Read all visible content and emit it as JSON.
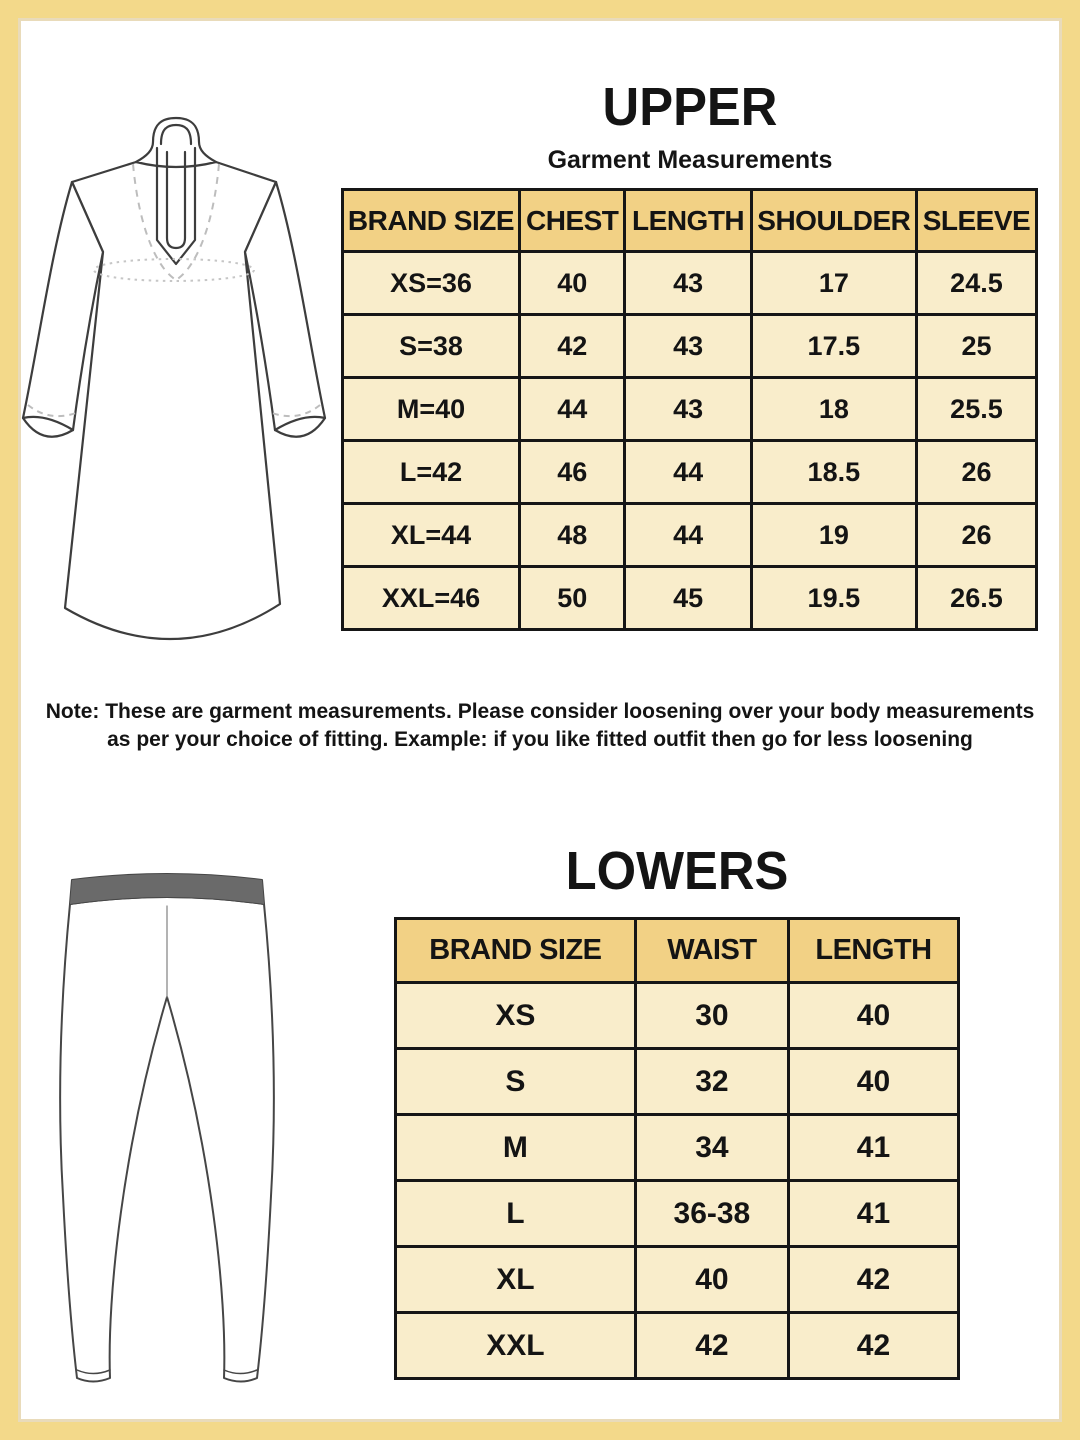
{
  "upper": {
    "title": "UPPER",
    "subtitle": "Garment Measurements",
    "table": {
      "headers": [
        "BRAND SIZE",
        "CHEST",
        "LENGTH",
        "SHOULDER",
        "SLEEVE"
      ],
      "rows": [
        [
          "XS=36",
          "40",
          "43",
          "17",
          "24.5"
        ],
        [
          "S=38",
          "42",
          "43",
          "17.5",
          "25"
        ],
        [
          "M=40",
          "44",
          "43",
          "18",
          "25.5"
        ],
        [
          "L=42",
          "46",
          "44",
          "18.5",
          "26"
        ],
        [
          "XL=44",
          "48",
          "44",
          "19",
          "26"
        ],
        [
          "XXL=46",
          "50",
          "45",
          "19.5",
          "26.5"
        ]
      ]
    },
    "note_line1": "Note: These are garment measurements. Please consider loosening over your body measurements",
    "note_line2": "as per your choice of fitting. Example: if you like fitted outfit then go for less loosening"
  },
  "lowers": {
    "title": "LOWERS",
    "table": {
      "headers": [
        "BRAND SIZE",
        "WAIST",
        "LENGTH"
      ],
      "rows": [
        [
          "XS",
          "30",
          "40"
        ],
        [
          "S",
          "32",
          "40"
        ],
        [
          "M",
          "34",
          "41"
        ],
        [
          "L",
          "36-38",
          "41"
        ],
        [
          "XL",
          "40",
          "42"
        ],
        [
          "XXL",
          "42",
          "42"
        ]
      ]
    }
  },
  "illustrations": {
    "kurta": "kurta-line-drawing",
    "pants": "leggings-line-drawing"
  },
  "colors": {
    "frame_border": "#F3D98A",
    "frame_inner_line": "#C9A452",
    "table_header_bg": "#F2D185",
    "table_cell_bg": "#F9EDCB",
    "table_border": "#161616",
    "text": "#141414",
    "background": "#FFFFFF",
    "drawing_stroke": "#3D3D3D"
  }
}
